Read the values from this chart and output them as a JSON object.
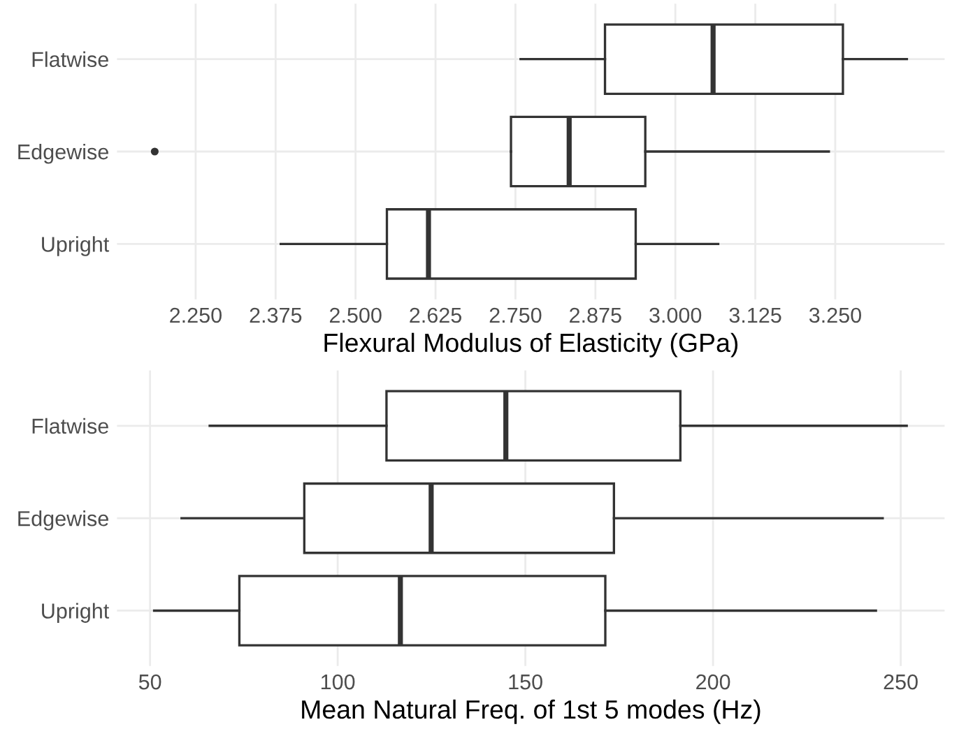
{
  "chart_data": [
    {
      "type": "box",
      "orientation": "horizontal",
      "xlabel": "Flexural Modulus of Elasticity (GPa)",
      "categories": [
        "Flatwise",
        "Edgewise",
        "Upright"
      ],
      "grid": true,
      "boxes": [
        {
          "low": 2.758,
          "q1": 2.89,
          "median": 3.059,
          "q3": 3.262,
          "high": 3.362
        },
        {
          "low": 2.743,
          "q1": 2.743,
          "median": 2.834,
          "q3": 2.953,
          "high": 3.24,
          "outliers": [
            2.186
          ]
        },
        {
          "low": 2.383,
          "q1": 2.549,
          "median": 2.614,
          "q3": 2.938,
          "high": 3.067
        }
      ],
      "xlim": [
        2.127,
        3.421
      ],
      "xticks": [
        {
          "value": 2.25,
          "label": "2.250"
        },
        {
          "value": 2.375,
          "label": "2.375"
        },
        {
          "value": 2.5,
          "label": "2.500"
        },
        {
          "value": 2.625,
          "label": "2.625"
        },
        {
          "value": 2.75,
          "label": "2.750"
        },
        {
          "value": 2.875,
          "label": "2.875"
        },
        {
          "value": 3.0,
          "label": "3.000"
        },
        {
          "value": 3.125,
          "label": "3.125"
        },
        {
          "value": 3.25,
          "label": "3.250"
        }
      ]
    },
    {
      "type": "box",
      "orientation": "horizontal",
      "xlabel": "Mean Natural Freq. of 1st 5 modes (Hz)",
      "categories": [
        "Flatwise",
        "Edgewise",
        "Upright"
      ],
      "grid": true,
      "boxes": [
        {
          "low": 65.9,
          "q1": 113.0,
          "median": 144.8,
          "q3": 191.3,
          "high": 251.6
        },
        {
          "low": 58.4,
          "q1": 91.1,
          "median": 124.9,
          "q3": 173.6,
          "high": 245.2
        },
        {
          "low": 51.1,
          "q1": 73.8,
          "median": 116.7,
          "q3": 171.3,
          "high": 243.4
        }
      ],
      "xlim": [
        41.2,
        261.7
      ],
      "xticks": [
        50,
        100,
        150,
        200,
        250
      ]
    }
  ]
}
